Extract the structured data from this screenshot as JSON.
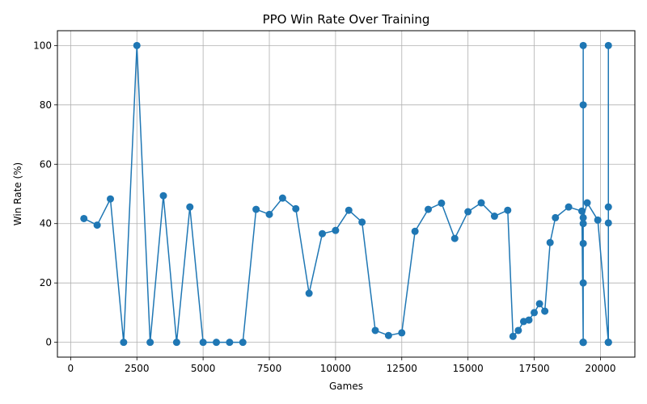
{
  "chart_data": {
    "type": "line",
    "title": "PPO Win Rate Over Training",
    "xlabel": "Games",
    "ylabel": "Win Rate (%)",
    "xlim": [
      -500,
      21300
    ],
    "ylim": [
      -5,
      105
    ],
    "xticks": [
      0,
      2500,
      5000,
      7500,
      10000,
      12500,
      15000,
      17500,
      20000
    ],
    "yticks": [
      0,
      20,
      40,
      60,
      80,
      100
    ],
    "grid": true,
    "color": "#1f77b4",
    "marker": "circle",
    "series": [
      {
        "x": [
          500,
          1000,
          1500,
          2000,
          2500,
          3000,
          3500,
          4000,
          4500,
          5000,
          5500,
          6000,
          6500,
          7000,
          7500,
          8000,
          8500,
          9000,
          9500,
          10000,
          10500,
          11000,
          11500,
          12000,
          12500,
          13000,
          13500,
          14000,
          14500,
          15000,
          15500,
          16000,
          16500,
          16700,
          16900,
          17100,
          17300,
          17500,
          17700,
          17900,
          18100,
          18300,
          18800,
          19300,
          19350,
          19350,
          19350,
          19350,
          19350,
          19350,
          19350,
          19350,
          19350,
          19350,
          19350,
          19350,
          19350,
          19500,
          19900,
          20300,
          20300,
          20300,
          20300,
          20300,
          20300,
          20300
        ],
        "y": [
          41.7,
          39.5,
          48.3,
          0,
          100,
          0,
          49.4,
          0,
          45.6,
          0,
          0,
          0,
          0,
          44.8,
          43.1,
          48.6,
          45.0,
          16.5,
          36.6,
          37.7,
          44.5,
          40.5,
          4.0,
          2.3,
          3.2,
          37.4,
          44.8,
          46.9,
          35.0,
          44.0,
          47.0,
          42.5,
          44.5,
          2.0,
          4.0,
          7.0,
          7.5,
          10.0,
          13.0,
          10.5,
          33.6,
          42.0,
          45.6,
          44.2,
          0,
          100,
          0,
          80,
          0,
          40,
          0,
          33.3,
          0,
          20,
          0,
          0,
          42.0,
          47.0,
          41.2,
          0,
          100,
          0,
          45.6,
          0,
          40.2,
          0
        ]
      }
    ]
  }
}
